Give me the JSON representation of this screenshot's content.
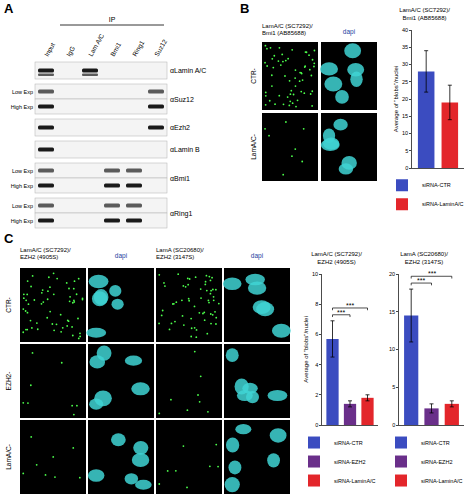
{
  "panels": {
    "a": {
      "label": "A",
      "ip_label": "IP",
      "lanes": [
        "Input",
        "IgG",
        "Lam A/C",
        "Bmi1",
        "Ring1",
        "Suz12"
      ],
      "rows": [
        {
          "antibody": "αLamin A/C",
          "exposures": [],
          "bands": [
            "Input",
            "Lam A/C"
          ]
        },
        {
          "antibody": "αSuz12",
          "exposures": [
            "Low Exp",
            "High Exp"
          ],
          "bands": [
            "Input",
            "Suz12"
          ]
        },
        {
          "antibody": "αEzh2",
          "exposures": [],
          "bands": [
            "Input",
            "Suz12"
          ]
        },
        {
          "antibody": "αLamin B",
          "exposures": [],
          "bands": [
            "Input"
          ]
        },
        {
          "antibody": "αBmi1",
          "exposures": [
            "Low Exp",
            "High Exp"
          ],
          "bands": [
            "Input",
            "Bmi1",
            "Ring1"
          ]
        },
        {
          "antibody": "αRing1",
          "exposures": [
            "Low Exp",
            "High Exp"
          ],
          "bands": [
            "Input",
            "Bmi1",
            "Ring1"
          ]
        }
      ]
    },
    "b": {
      "label": "B",
      "image_columns": [
        "LamA/C (SC7292)/ Bmi1 (AB85688)",
        "dapi"
      ],
      "image_rows": [
        "CTR-",
        "LamA/C-"
      ]
    },
    "c": {
      "label": "C",
      "image_columns": [
        "LamA/C (SC7292)/ EZH2 (4905S)",
        "dapi",
        "LamA (SC20680)/ EZH2 (3147S)",
        "dapi"
      ],
      "image_rows": [
        "CTR-",
        "EZH2-",
        "LamA/C-"
      ]
    }
  },
  "chart_data": [
    {
      "type": "bar",
      "title": "LamA/C (SC7292)/ Bmi1 (AB85688)",
      "y_label": "Average of \"blobs\"/nuclei",
      "ylim": [
        0,
        40
      ],
      "yticks": [
        0,
        5,
        10,
        15,
        20,
        25,
        30,
        35,
        40
      ],
      "tick_labels": "y",
      "legend": "bottom",
      "series": [
        {
          "name": "siRNA-CTR",
          "color": "#3b4cc0",
          "values": [
            28
          ],
          "error": [
            6
          ]
        },
        {
          "name": "siRNA-LaminA/C",
          "color": "#e3262b",
          "values": [
            19
          ],
          "error": [
            5
          ]
        }
      ]
    },
    {
      "type": "bar",
      "title": "LamA/C (SC7292)/ EZH2 (4905S)",
      "y_label": "Average of \"blobs\"/nuclei",
      "ylim": [
        0,
        10
      ],
      "yticks": [
        0,
        2,
        4,
        6,
        8,
        10
      ],
      "tick_labels": "y",
      "legend": "bottom",
      "series": [
        {
          "name": "siRNA-CTR",
          "color": "#3b4cc0",
          "values": [
            5.7
          ],
          "error": [
            1.2
          ]
        },
        {
          "name": "siRNA-EZH2",
          "color": "#6a2f8a",
          "values": [
            1.4
          ],
          "error": [
            0.2
          ]
        },
        {
          "name": "siRNA-LaminA/C",
          "color": "#e3262b",
          "values": [
            1.8
          ],
          "error": [
            0.2
          ]
        }
      ],
      "annotations": [
        {
          "text": "***",
          "between": [
            0,
            1
          ]
        },
        {
          "text": "***",
          "between": [
            0,
            2
          ]
        }
      ]
    },
    {
      "type": "bar",
      "title": "LamA (SC20680)/ EZH2 (3147S)",
      "ylim": [
        0,
        20
      ],
      "yticks": [
        0,
        5,
        10,
        15,
        20
      ],
      "tick_labels": "y",
      "legend": "bottom",
      "series": [
        {
          "name": "siRNA-CTR",
          "color": "#3b4cc0",
          "values": [
            14.5
          ],
          "error": [
            3.5
          ]
        },
        {
          "name": "siRNA-EZH2",
          "color": "#6a2f8a",
          "values": [
            2.2
          ],
          "error": [
            0.6
          ]
        },
        {
          "name": "siRNA-LaminA/C",
          "color": "#e3262b",
          "values": [
            2.8
          ],
          "error": [
            0.4
          ]
        }
      ],
      "annotations": [
        {
          "text": "***",
          "between": [
            0,
            1
          ]
        },
        {
          "text": "***",
          "between": [
            0,
            2
          ]
        }
      ]
    }
  ]
}
